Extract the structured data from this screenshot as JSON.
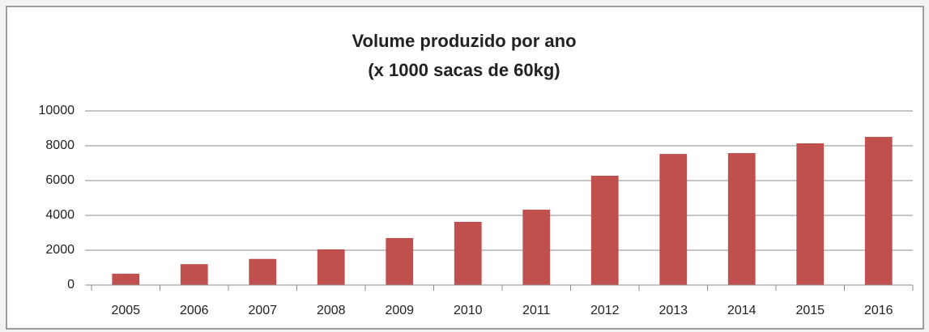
{
  "chart_data": {
    "type": "bar",
    "title": "Volume produzido  por ano",
    "subtitle": "(x 1000 sacas de 60kg)",
    "categories": [
      "2005",
      "2006",
      "2007",
      "2008",
      "2009",
      "2010",
      "2011",
      "2012",
      "2013",
      "2014",
      "2015",
      "2016"
    ],
    "values": [
      650,
      1200,
      1500,
      2050,
      2700,
      3630,
      4330,
      6280,
      7530,
      7580,
      8140,
      8510
    ],
    "color": "#c0504d",
    "ylim": [
      0,
      10000
    ],
    "yticks": [
      0,
      2000,
      4000,
      6000,
      8000,
      10000
    ],
    "grid": true
  }
}
